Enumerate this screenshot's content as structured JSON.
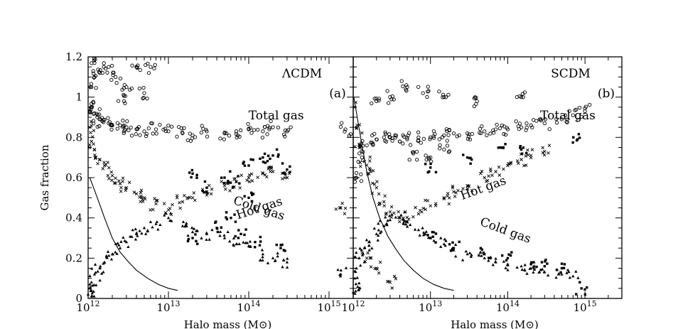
{
  "figure": {
    "ylabel": "Gas fraction"
  },
  "chart_data": [
    {
      "type": "scatter",
      "panel_title": "ΛCDM",
      "panel_tag": "(a)",
      "xlabel": "Halo mass (M⊙)",
      "ylabel": "Gas fraction",
      "xscale": "log",
      "xlim": [
        1000000000000.0,
        2000000000000000.0
      ],
      "ylim": [
        0,
        1.2
      ],
      "x_ticks": [
        {
          "value": 1000000000000.0,
          "mantissa": "10",
          "exp": "12"
        },
        {
          "value": 10000000000000.0,
          "mantissa": "10",
          "exp": "13"
        },
        {
          "value": 100000000000000.0,
          "mantissa": "10",
          "exp": "14"
        },
        {
          "value": 1000000000000000.0,
          "mantissa": "10",
          "exp": "15"
        }
      ],
      "y_ticks": [
        "0",
        "0.2",
        "0.4",
        "0.6",
        "0.8",
        "1",
        "1.2"
      ],
      "annotations": [
        {
          "text": "Total gas",
          "x": 220000000000000.0,
          "y": 0.89,
          "rotate": 0
        },
        {
          "text": "Hot gas",
          "x": 140000000000000.0,
          "y": 0.43,
          "rotate": -18
        },
        {
          "text": "Cold gas",
          "x": 130000000000000.0,
          "y": 0.43,
          "rotate": 18
        }
      ],
      "series": [
        {
          "marker": "circle",
          "points": [
            [
              1050000000000.0,
              0.93
            ],
            [
              1100000000000.0,
              0.95
            ],
            [
              1200000000000.0,
              0.92
            ],
            [
              1300000000000.0,
              0.9
            ],
            [
              1500000000000.0,
              0.88
            ],
            [
              1800000000000.0,
              0.87
            ],
            [
              2000000000000.0,
              0.86
            ],
            [
              2500000000000.0,
              0.86
            ],
            [
              3000000000000.0,
              0.85
            ],
            [
              4000000000000.0,
              0.84
            ],
            [
              5000000000000.0,
              0.83
            ],
            [
              7000000000000.0,
              0.84
            ],
            [
              10000000000000.0,
              0.83
            ],
            [
              15000000000000.0,
              0.82
            ],
            [
              20000000000000.0,
              0.81
            ],
            [
              30000000000000.0,
              0.83
            ],
            [
              50000000000000.0,
              0.82
            ],
            [
              70000000000000.0,
              0.83
            ],
            [
              100000000000000.0,
              0.84
            ],
            [
              150000000000000.0,
              0.83
            ],
            [
              200000000000000.0,
              0.85
            ],
            [
              300000000000000.0,
              0.83
            ],
            [
              1100000000000.0,
              1.05
            ],
            [
              1200000000000.0,
              1.1
            ],
            [
              1400000000000.0,
              1.12
            ],
            [
              1800000000000.0,
              1.15
            ],
            [
              2200000000000.0,
              1.1
            ],
            [
              3000000000000.0,
              1.05
            ],
            [
              4000000000000.0,
              1.15
            ],
            [
              5000000000000.0,
              1.02
            ],
            [
              6000000000000.0,
              1.15
            ],
            [
              1200000000000.0,
              1.17
            ],
            [
              2800000000000.0,
              0.98
            ],
            [
              1600000000000000.0,
              0.84
            ]
          ]
        },
        {
          "marker": "cross",
          "points": [
            [
              1050000000000.0,
              0.85
            ],
            [
              1100000000000.0,
              0.78
            ],
            [
              1200000000000.0,
              0.74
            ],
            [
              1400000000000.0,
              0.69
            ],
            [
              1600000000000.0,
              0.66
            ],
            [
              2000000000000.0,
              0.61
            ],
            [
              2500000000000.0,
              0.57
            ],
            [
              3000000000000.0,
              0.55
            ],
            [
              4000000000000.0,
              0.52
            ],
            [
              5000000000000.0,
              0.5
            ],
            [
              7000000000000.0,
              0.47
            ],
            [
              10000000000000.0,
              0.44
            ],
            [
              15000000000000.0,
              0.48
            ],
            [
              20000000000000.0,
              0.5
            ],
            [
              30000000000000.0,
              0.53
            ],
            [
              50000000000000.0,
              0.56
            ],
            [
              70000000000000.0,
              0.58
            ],
            [
              100000000000000.0,
              0.6
            ],
            [
              150000000000000.0,
              0.62
            ],
            [
              200000000000000.0,
              0.63
            ],
            [
              300000000000000.0,
              0.6
            ],
            [
              1400000000000000.0,
              0.45
            ]
          ]
        },
        {
          "marker": "triangle",
          "points": [
            [
              1050000000000.0,
              0.05
            ],
            [
              1100000000000.0,
              0.08
            ],
            [
              1200000000000.0,
              0.12
            ],
            [
              1400000000000.0,
              0.15
            ],
            [
              1600000000000.0,
              0.18
            ],
            [
              2000000000000.0,
              0.22
            ],
            [
              2500000000000.0,
              0.25
            ],
            [
              3000000000000.0,
              0.28
            ],
            [
              4000000000000.0,
              0.32
            ],
            [
              5000000000000.0,
              0.35
            ],
            [
              7000000000000.0,
              0.37
            ],
            [
              10000000000000.0,
              0.4
            ],
            [
              15000000000000.0,
              0.36
            ],
            [
              20000000000000.0,
              0.33
            ],
            [
              30000000000000.0,
              0.32
            ],
            [
              50000000000000.0,
              0.3
            ],
            [
              70000000000000.0,
              0.27
            ],
            [
              100000000000000.0,
              0.26
            ],
            [
              150000000000000.0,
              0.22
            ],
            [
              200000000000000.0,
              0.2
            ],
            [
              300000000000000.0,
              0.18
            ],
            [
              1400000000000000.0,
              0.12
            ],
            [
              1000000000000.0,
              0.02
            ],
            [
              1100000000000.0,
              0.01
            ]
          ]
        },
        {
          "marker": "square",
          "points": [
            [
              20000000000000.0,
              0.62
            ],
            [
              30000000000000.0,
              0.55
            ],
            [
              50000000000000.0,
              0.6
            ],
            [
              70000000000000.0,
              0.58
            ],
            [
              100000000000000.0,
              0.66
            ],
            [
              150000000000000.0,
              0.7
            ],
            [
              200000000000000.0,
              0.71
            ],
            [
              300000000000000.0,
              0.64
            ],
            [
              20000000000000.0,
              0.3
            ],
            [
              40000000000000.0,
              0.35
            ],
            [
              60000000000000.0,
              0.4
            ],
            [
              80000000000000.0,
              0.32
            ],
            [
              120000000000000.0,
              0.28
            ],
            [
              250000000000000.0,
              0.25
            ],
            [
              100000000000000.0,
              0.5
            ]
          ]
        }
      ],
      "curve": {
        "x": [
          1050000000000.0,
          1300000000000.0,
          1600000000000.0,
          2000000000000.0,
          2500000000000.0,
          3200000000000.0,
          4000000000000.0,
          5500000000000.0,
          7500000000000.0,
          10000000000000.0,
          13000000000000.0
        ],
        "y": [
          0.6,
          0.5,
          0.4,
          0.3,
          0.23,
          0.18,
          0.14,
          0.1,
          0.07,
          0.05,
          0.04
        ]
      }
    },
    {
      "type": "scatter",
      "panel_title": "SCDM",
      "panel_tag": "(b)",
      "xlabel": "Halo mass (M⊙)",
      "xscale": "log",
      "xlim": [
        1000000000000.0,
        3000000000000000.0
      ],
      "ylim": [
        0,
        1.2
      ],
      "x_ticks": [
        {
          "value": 1000000000000.0,
          "mantissa": "10",
          "exp": "12"
        },
        {
          "value": 10000000000000.0,
          "mantissa": "10",
          "exp": "13"
        },
        {
          "value": 100000000000000.0,
          "mantissa": "10",
          "exp": "14"
        },
        {
          "value": 1000000000000000.0,
          "mantissa": "10",
          "exp": "15"
        }
      ],
      "annotations": [
        {
          "text": "Total gas",
          "x": 600000000000000.0,
          "y": 0.89,
          "rotate": 0
        },
        {
          "text": "Hot gas",
          "x": 50000000000000.0,
          "y": 0.53,
          "rotate": -20
        },
        {
          "text": "Cold gas",
          "x": 90000000000000.0,
          "y": 0.32,
          "rotate": 20
        }
      ],
      "series": [
        {
          "marker": "circle",
          "points": [
            [
              1100000000000.0,
              0.6
            ],
            [
              1300000000000.0,
              0.7
            ],
            [
              1500000000000.0,
              0.76
            ],
            [
              2000000000000.0,
              0.79
            ],
            [
              2500000000000.0,
              0.8
            ],
            [
              3000000000000.0,
              0.8
            ],
            [
              4000000000000.0,
              0.78
            ],
            [
              5000000000000.0,
              0.79
            ],
            [
              7000000000000.0,
              0.8
            ],
            [
              10000000000000.0,
              0.8
            ],
            [
              15000000000000.0,
              0.81
            ],
            [
              20000000000000.0,
              0.82
            ],
            [
              30000000000000.0,
              0.82
            ],
            [
              50000000000000.0,
              0.83
            ],
            [
              70000000000000.0,
              0.84
            ],
            [
              100000000000000.0,
              0.84
            ],
            [
              150000000000000.0,
              0.85
            ],
            [
              200000000000000.0,
              0.86
            ],
            [
              300000000000000.0,
              0.87
            ],
            [
              500000000000000.0,
              0.89
            ],
            [
              700000000000000.0,
              0.91
            ],
            [
              1000000000000000.0,
              0.93
            ],
            [
              2000000000000.0,
              0.98
            ],
            [
              3000000000000.0,
              1.0
            ],
            [
              5000000000000.0,
              1.05
            ],
            [
              8000000000000.0,
              1.02
            ],
            [
              15000000000000.0,
              1.0
            ],
            [
              40000000000000.0,
              0.98
            ],
            [
              150000000000000.0,
              1.0
            ],
            [
              6000000000000.0,
              0.72
            ],
            [
              10000000000000.0,
              0.7
            ],
            [
              15000000000000.0,
              0.74
            ]
          ]
        },
        {
          "marker": "cross",
          "points": [
            [
              1050000000000.0,
              0.95
            ],
            [
              1100000000000.0,
              0.85
            ],
            [
              1200000000000.0,
              0.75
            ],
            [
              1400000000000.0,
              0.68
            ],
            [
              1600000000000.0,
              0.62
            ],
            [
              2000000000000.0,
              0.55
            ],
            [
              2500000000000.0,
              0.48
            ],
            [
              3000000000000.0,
              0.43
            ],
            [
              4000000000000.0,
              0.4
            ],
            [
              5000000000000.0,
              0.38
            ],
            [
              7000000000000.0,
              0.42
            ],
            [
              10000000000000.0,
              0.46
            ],
            [
              15000000000000.0,
              0.5
            ],
            [
              20000000000000.0,
              0.53
            ],
            [
              30000000000000.0,
              0.56
            ],
            [
              50000000000000.0,
              0.6
            ],
            [
              70000000000000.0,
              0.63
            ],
            [
              100000000000000.0,
              0.66
            ],
            [
              150000000000000.0,
              0.69
            ],
            [
              200000000000000.0,
              0.71
            ],
            [
              300000000000000.0,
              0.73
            ],
            [
              1500000000000.0,
              0.2
            ],
            [
              2000000000000.0,
              0.15
            ],
            [
              3000000000000.0,
              0.08
            ]
          ]
        },
        {
          "marker": "triangle",
          "points": [
            [
              1050000000000.0,
              0.1
            ],
            [
              1100000000000.0,
              0.15
            ],
            [
              1200000000000.0,
              0.2
            ],
            [
              1400000000000.0,
              0.25
            ],
            [
              1600000000000.0,
              0.28
            ],
            [
              2000000000000.0,
              0.32
            ],
            [
              2500000000000.0,
              0.36
            ],
            [
              3000000000000.0,
              0.39
            ],
            [
              4000000000000.0,
              0.4
            ],
            [
              5000000000000.0,
              0.38
            ],
            [
              7000000000000.0,
              0.34
            ],
            [
              10000000000000.0,
              0.3
            ],
            [
              15000000000000.0,
              0.27
            ],
            [
              20000000000000.0,
              0.24
            ],
            [
              30000000000000.0,
              0.22
            ],
            [
              50000000000000.0,
              0.2
            ],
            [
              70000000000000.0,
              0.18
            ],
            [
              100000000000000.0,
              0.17
            ],
            [
              150000000000000.0,
              0.16
            ],
            [
              200000000000000.0,
              0.15
            ],
            [
              300000000000000.0,
              0.13
            ],
            [
              500000000000000.0,
              0.12
            ],
            [
              700000000000000.0,
              0.11
            ],
            [
              1000000000000.0,
              0.03
            ],
            [
              1200000000000.0,
              0.05
            ]
          ]
        },
        {
          "marker": "square",
          "points": [
            [
              10000000000000.0,
              0.3
            ],
            [
              20000000000000.0,
              0.25
            ],
            [
              50000000000000.0,
              0.22
            ],
            [
              100000000000000.0,
              0.2
            ],
            [
              200000000000000.0,
              0.17
            ],
            [
              300000000000000.0,
              0.16
            ],
            [
              500000000000000.0,
              0.15
            ],
            [
              10000000000000.0,
              0.65
            ],
            [
              30000000000000.0,
              0.7
            ],
            [
              80000000000000.0,
              0.75
            ],
            [
              150000000000000.0,
              0.74
            ],
            [
              800000000000000.0,
              0.79
            ],
            [
              900000000000000.0,
              0.05
            ]
          ]
        }
      ],
      "curve": {
        "x": [
          1020000000000.0,
          1150000000000.0,
          1300000000000.0,
          1500000000000.0,
          1800000000000.0,
          2200000000000.0,
          2800000000000.0,
          3500000000000.0,
          4500000000000.0,
          6000000000000.0,
          8000000000000.0,
          11000000000000.0,
          15000000000000.0,
          20000000000000.0
        ],
        "y": [
          1.0,
          0.88,
          0.76,
          0.63,
          0.5,
          0.4,
          0.31,
          0.25,
          0.19,
          0.14,
          0.1,
          0.07,
          0.05,
          0.04
        ]
      }
    }
  ]
}
